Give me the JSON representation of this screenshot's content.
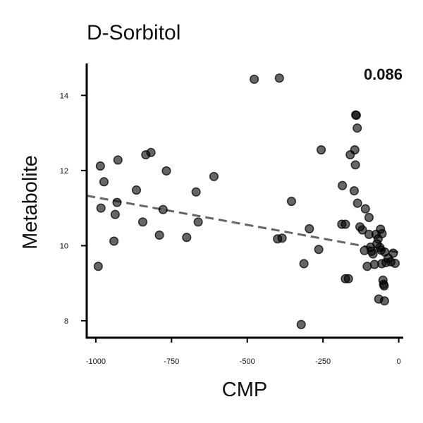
{
  "chart_data": {
    "type": "scatter",
    "title": "D-Sorbitol",
    "xlabel": "CMP",
    "ylabel": "Metabolite",
    "annotation": "0.086",
    "xlim": [
      -1030,
      15
    ],
    "ylim": [
      7.55,
      14.85
    ],
    "xticks": [
      -1000,
      -750,
      -500,
      -250,
      0
    ],
    "xtick_labels": [
      "-1000",
      "-750",
      "-500",
      "-250",
      "0"
    ],
    "yticks": [
      8,
      10,
      12,
      14
    ],
    "ytick_labels": [
      "8",
      "10",
      "12",
      "14"
    ],
    "grid": false,
    "trendline": {
      "x": [
        -1030,
        0
      ],
      "y": [
        11.33,
        9.82
      ],
      "style": "dashed"
    },
    "points": [
      {
        "x": -992,
        "y": 9.45
      },
      {
        "x": -985,
        "y": 12.12
      },
      {
        "x": -983,
        "y": 11.0
      },
      {
        "x": -973,
        "y": 11.7
      },
      {
        "x": -940,
        "y": 10.12
      },
      {
        "x": -936,
        "y": 10.83
      },
      {
        "x": -930,
        "y": 11.15
      },
      {
        "x": -927,
        "y": 12.28
      },
      {
        "x": -866,
        "y": 11.48
      },
      {
        "x": -845,
        "y": 10.63
      },
      {
        "x": -835,
        "y": 12.42
      },
      {
        "x": -818,
        "y": 12.48
      },
      {
        "x": -790,
        "y": 10.28
      },
      {
        "x": -778,
        "y": 10.96
      },
      {
        "x": -767,
        "y": 11.99
      },
      {
        "x": -700,
        "y": 10.22
      },
      {
        "x": -669,
        "y": 11.43
      },
      {
        "x": -662,
        "y": 10.63
      },
      {
        "x": -610,
        "y": 11.84
      },
      {
        "x": -477,
        "y": 14.43
      },
      {
        "x": -394,
        "y": 14.46
      },
      {
        "x": -400,
        "y": 10.18
      },
      {
        "x": -385,
        "y": 10.2
      },
      {
        "x": -354,
        "y": 11.18
      },
      {
        "x": -322,
        "y": 7.9
      },
      {
        "x": -313,
        "y": 9.52
      },
      {
        "x": -295,
        "y": 10.45
      },
      {
        "x": -264,
        "y": 9.9
      },
      {
        "x": -256,
        "y": 12.55
      },
      {
        "x": -186,
        "y": 11.6
      },
      {
        "x": -188,
        "y": 10.57
      },
      {
        "x": -176,
        "y": 10.57
      },
      {
        "x": -176,
        "y": 9.12
      },
      {
        "x": -166,
        "y": 9.12
      },
      {
        "x": -160,
        "y": 12.42
      },
      {
        "x": -147,
        "y": 11.46
      },
      {
        "x": -145,
        "y": 12.55
      },
      {
        "x": -143,
        "y": 12.15
      },
      {
        "x": -142,
        "y": 13.48
      },
      {
        "x": -140,
        "y": 13.47
      },
      {
        "x": -137,
        "y": 13.13
      },
      {
        "x": -136,
        "y": 11.13
      },
      {
        "x": -128,
        "y": 10.5
      },
      {
        "x": -120,
        "y": 10.42
      },
      {
        "x": -113,
        "y": 9.87
      },
      {
        "x": -110,
        "y": 10.98
      },
      {
        "x": -104,
        "y": 9.45
      },
      {
        "x": -98,
        "y": 10.75
      },
      {
        "x": -98,
        "y": 10.3
      },
      {
        "x": -93,
        "y": 9.96
      },
      {
        "x": -90,
        "y": 9.85
      },
      {
        "x": -85,
        "y": 9.78
      },
      {
        "x": -80,
        "y": 9.5
      },
      {
        "x": -75,
        "y": 10.3
      },
      {
        "x": -72,
        "y": 10.05
      },
      {
        "x": -68,
        "y": 10.18
      },
      {
        "x": -66,
        "y": 8.58
      },
      {
        "x": -62,
        "y": 9.95
      },
      {
        "x": -60,
        "y": 10.44
      },
      {
        "x": -58,
        "y": 9.88
      },
      {
        "x": -56,
        "y": 9.52
      },
      {
        "x": -55,
        "y": 10.32
      },
      {
        "x": -52,
        "y": 9.08
      },
      {
        "x": -50,
        "y": 8.97
      },
      {
        "x": -48,
        "y": 8.93
      },
      {
        "x": -47,
        "y": 8.53
      },
      {
        "x": -46,
        "y": 9.83
      },
      {
        "x": -42,
        "y": 9.55
      },
      {
        "x": -35,
        "y": 9.67
      },
      {
        "x": -26,
        "y": 9.57
      },
      {
        "x": -18,
        "y": 9.8
      },
      {
        "x": -12,
        "y": 9.53
      }
    ]
  }
}
